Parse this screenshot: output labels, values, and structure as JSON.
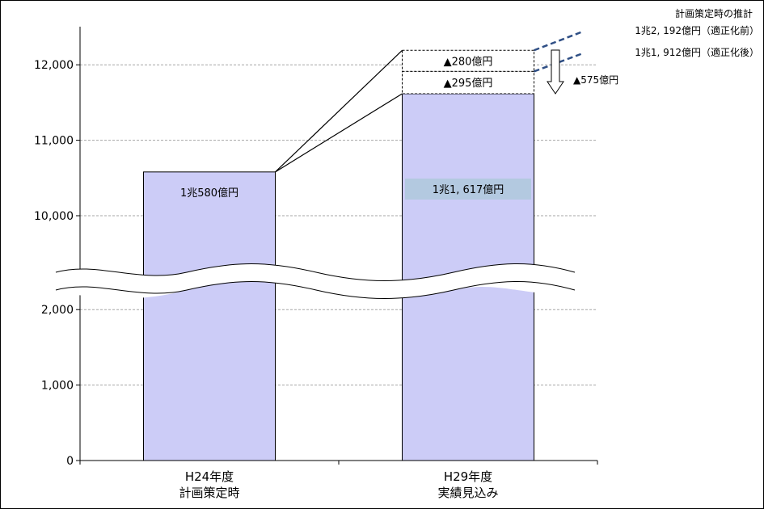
{
  "chart_data": {
    "type": "bar",
    "categories": [
      {
        "line1": "H24年度",
        "line2": "計画策定時"
      },
      {
        "line1": "H29年度",
        "line2": "実績見込み"
      }
    ],
    "series": [
      {
        "values": [
          10580,
          11617
        ]
      }
    ],
    "bar_labels": [
      "1兆580億円",
      "1兆1, 617億円"
    ],
    "projection": {
      "before_optimization": 12192,
      "after_optimization": 11912,
      "segment_labels": [
        "▲280億円",
        "▲295億円"
      ]
    },
    "annotations": {
      "title": "計画策定時の推計",
      "before": "1兆2, 192億円（適正化前）",
      "after": "1兆1, 912億円（適正化後）",
      "total_diff": "▲575億円"
    },
    "y_ticks_low": [
      0,
      1000,
      2000
    ],
    "y_ticks_high": [
      10000,
      11000,
      12000
    ],
    "y_tick_labels": {
      "0": "0",
      "1000": "1,000",
      "2000": "2,000",
      "10000": "10,000",
      "11000": "11,000",
      "12000": "12,000"
    },
    "axis_break": {
      "from": 2600,
      "to": 9400
    },
    "ylim": [
      0,
      12500
    ],
    "grid": true,
    "colors": {
      "bar": "#ccccf7",
      "bar_label_bg": "#b3c9e0",
      "grid": "#a6a6a6",
      "dash_link": "#2f4f85"
    }
  }
}
